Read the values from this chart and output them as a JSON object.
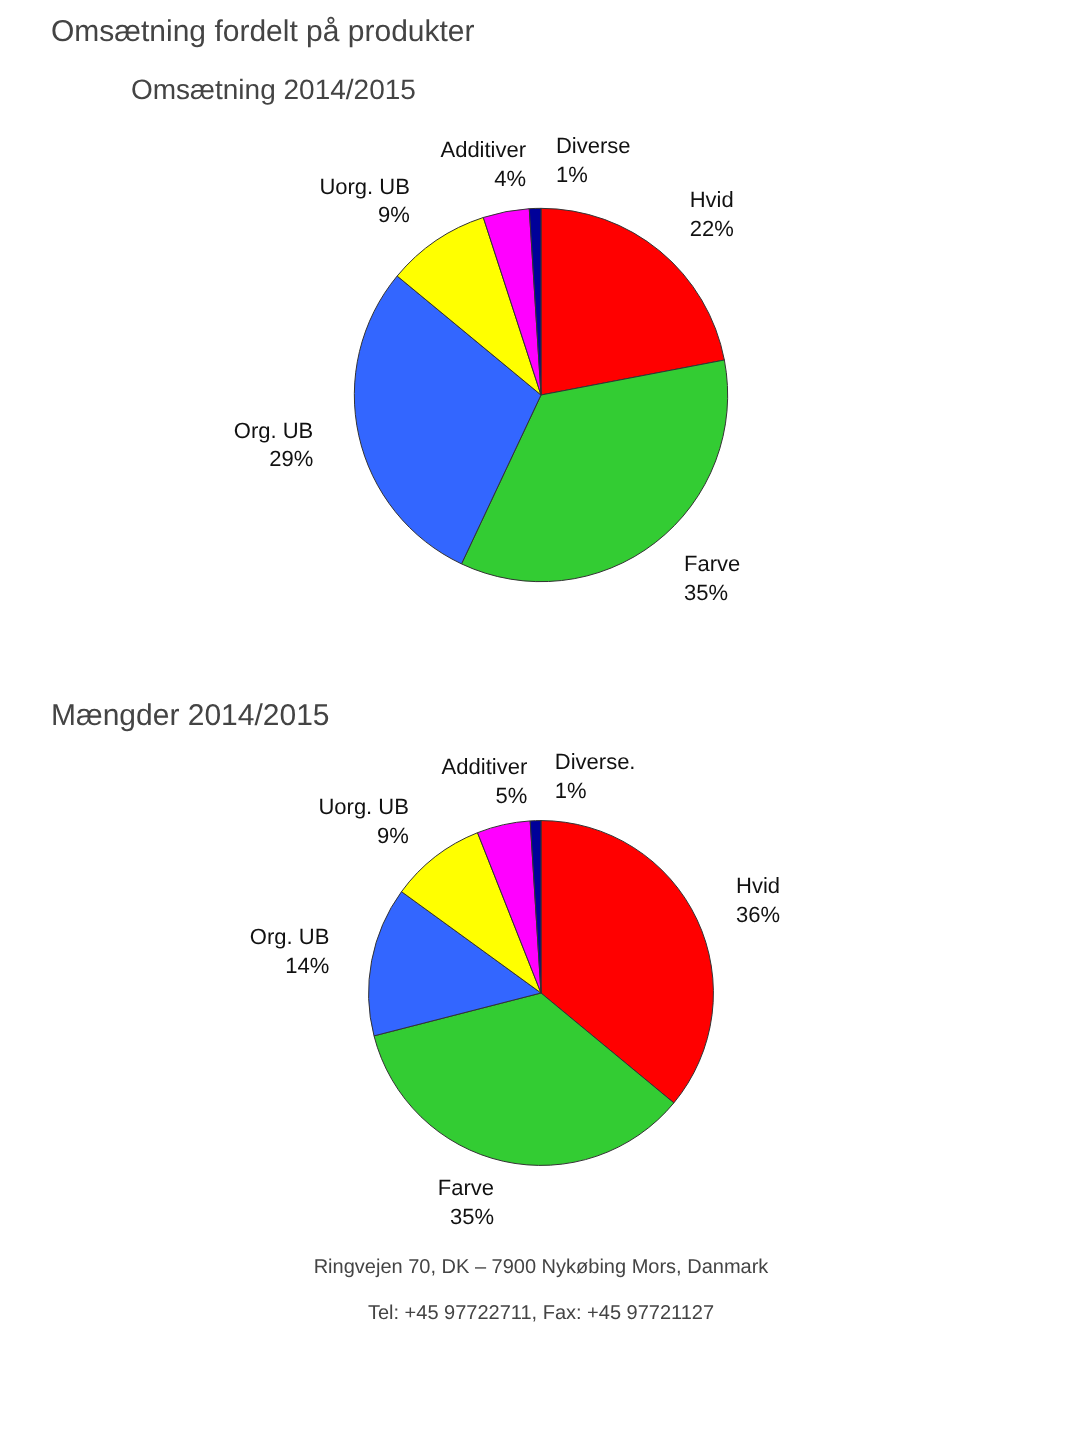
{
  "chart_data": [
    {
      "type": "pie",
      "title": "Omsætning fordelt på produkter",
      "subtitle": "Omsætning 2014/2015",
      "categories": [
        "Hvid",
        "Farve",
        "Org. UB",
        "Uorg. UB",
        "Additiver",
        "Diverse"
      ],
      "values": [
        22,
        35,
        29,
        9,
        4,
        1
      ],
      "value_labels": [
        "22%",
        "35%",
        "29%",
        "9%",
        "4%",
        "1%"
      ],
      "colors": [
        "#ff0000",
        "#33cc33",
        "#3366ff",
        "#ffff00",
        "#ff00ff",
        "#000099"
      ]
    },
    {
      "type": "pie",
      "title": "Mængder 2014/2015",
      "categories": [
        "Hvid",
        "Farve",
        "Org. UB",
        "Uorg. UB",
        "Additiver",
        "Diverse."
      ],
      "values": [
        36,
        35,
        14,
        9,
        5,
        1
      ],
      "value_labels": [
        "36%",
        "35%",
        "14%",
        "9%",
        "5%",
        "1%"
      ],
      "colors": [
        "#ff0000",
        "#33cc33",
        "#3366ff",
        "#ffff00",
        "#ff00ff",
        "#000099"
      ],
      "annotations": [
        "Ringvejen 70, DK – 7900 Nykøbing Mors, Danmark",
        "Tel: +45 97722711, Fax: +45 97721127"
      ]
    }
  ]
}
